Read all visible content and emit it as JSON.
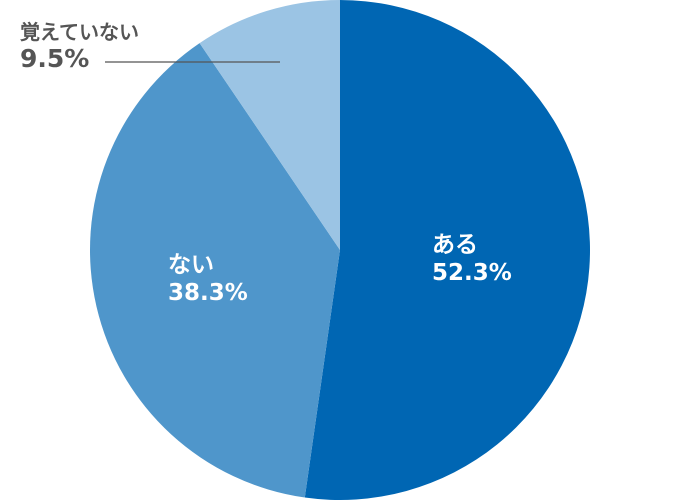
{
  "chart_data": {
    "type": "pie",
    "start": "12 o'clock",
    "direction": "clockwise",
    "slices": [
      {
        "label": "ある",
        "value": 52.3,
        "value_label": "52.3%",
        "color": "#0066b3"
      },
      {
        "label": "ない",
        "value": 38.3,
        "value_label": "38.3%",
        "color": "#4f96cb"
      },
      {
        "label": "覚えていない",
        "value": 9.5,
        "value_label": "9.5%",
        "color": "#9bc4e4"
      }
    ]
  }
}
